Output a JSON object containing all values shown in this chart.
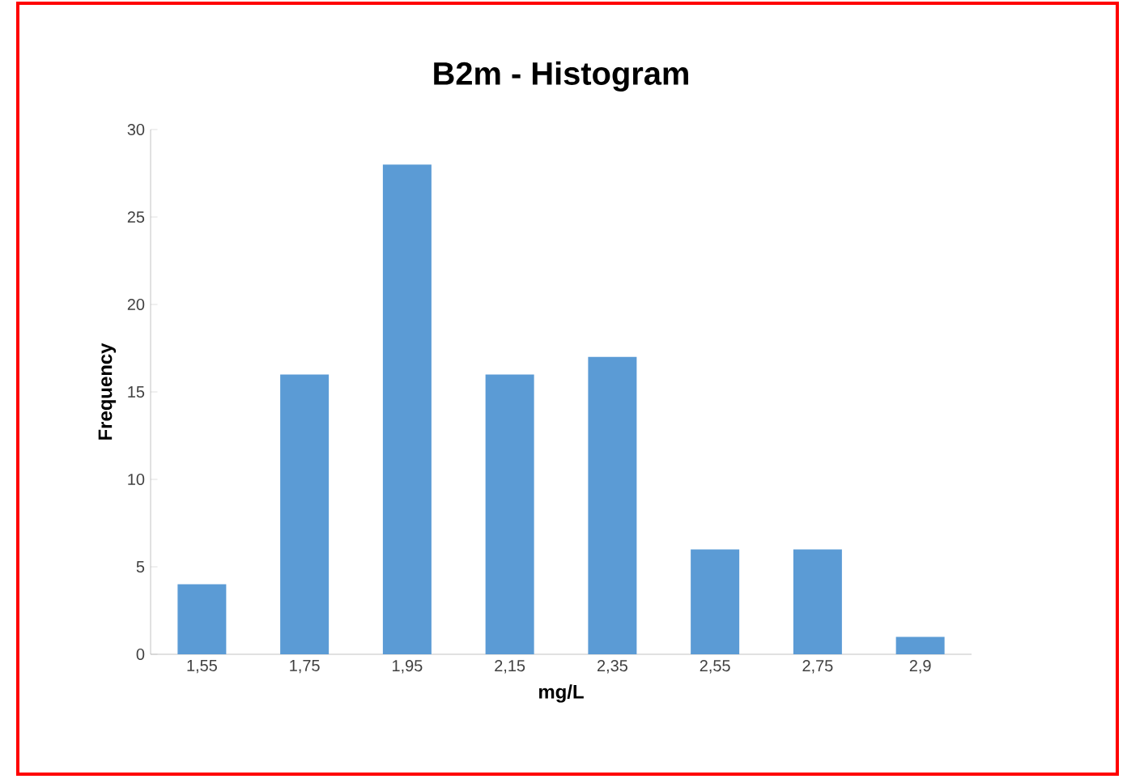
{
  "chart_data": {
    "type": "bar",
    "title": "B2m - Histogram",
    "xlabel": "mg/L",
    "ylabel": "Frequency",
    "categories": [
      "1,55",
      "1,75",
      "1,95",
      "2,15",
      "2,35",
      "2,55",
      "2,75",
      "2,9"
    ],
    "values": [
      4,
      16,
      28,
      16,
      17,
      6,
      6,
      1
    ],
    "color": "#5b9bd5",
    "ylim": [
      0,
      30
    ],
    "yticks": [
      0,
      5,
      10,
      15,
      20,
      25,
      30
    ],
    "grid": false,
    "legend": false
  }
}
